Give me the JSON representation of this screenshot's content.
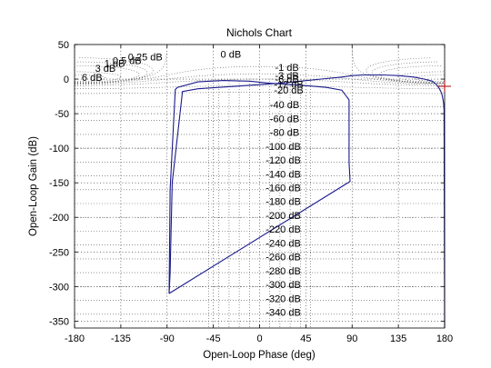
{
  "chart_data": {
    "type": "line",
    "title": "Nichols Chart",
    "xlabel": "Open-Loop Phase (deg)",
    "ylabel": "Open-Loop Gain (dB)",
    "xlim": [
      -180,
      180
    ],
    "ylim": [
      -360,
      50
    ],
    "xticks": [
      -180,
      -135,
      -90,
      -45,
      0,
      45,
      90,
      135,
      180
    ],
    "yticks": [
      50,
      0,
      -50,
      -100,
      -150,
      -200,
      -250,
      -300,
      -350
    ],
    "xtick_labels": [
      "-180",
      "-135",
      "-90",
      "-45",
      "0",
      "45",
      "90",
      "135",
      "180"
    ],
    "ytick_labels": [
      "50",
      "0",
      "-50",
      "-100",
      "-150",
      "-200",
      "-250",
      "-300",
      "-350"
    ],
    "grid": true,
    "contour_labels": [
      {
        "text": "0 dB",
        "x": -38,
        "y": 36
      },
      {
        "text": "0.25 dB",
        "x": -128,
        "y": 32
      },
      {
        "text": "0.5 dB",
        "x": -143,
        "y": 27
      },
      {
        "text": "1 dB",
        "x": -151,
        "y": 23
      },
      {
        "text": "3 dB",
        "x": -160,
        "y": 16
      },
      {
        "text": "6 dB",
        "x": -173,
        "y": 3
      },
      {
        "text": "-1 dB",
        "x": 15,
        "y": 17
      },
      {
        "text": "-3 dB",
        "x": 15,
        "y": 5
      },
      {
        "text": "-6 dB",
        "x": 15,
        "y": 0
      },
      {
        "text": "-12 dB",
        "x": 14,
        "y": -7
      },
      {
        "text": "-20 dB",
        "x": 14,
        "y": -16
      },
      {
        "text": "-40 dB",
        "x": 10,
        "y": -37
      },
      {
        "text": "-60 dB",
        "x": 10,
        "y": -57
      },
      {
        "text": "-80 dB",
        "x": 10,
        "y": -77
      },
      {
        "text": "-100 dB",
        "x": 6,
        "y": -97
      },
      {
        "text": "-120 dB",
        "x": 6,
        "y": -117
      },
      {
        "text": "-140 dB",
        "x": 6,
        "y": -137
      },
      {
        "text": "-160 dB",
        "x": 6,
        "y": -157
      },
      {
        "text": "-180 dB",
        "x": 6,
        "y": -177
      },
      {
        "text": "-200 dB",
        "x": 6,
        "y": -197
      },
      {
        "text": "-220 dB",
        "x": 6,
        "y": -217
      },
      {
        "text": "-240 dB",
        "x": 6,
        "y": -237
      },
      {
        "text": "-260 dB",
        "x": 6,
        "y": -257
      },
      {
        "text": "-280 dB",
        "x": 6,
        "y": -277
      },
      {
        "text": "-300 dB",
        "x": 6,
        "y": -297
      },
      {
        "text": "-320 dB",
        "x": 6,
        "y": -317
      },
      {
        "text": "-340 dB",
        "x": 6,
        "y": -337
      }
    ],
    "series": [
      {
        "color": "#1a1a8c",
        "x": [
          -88,
          -87,
          -85,
          -75,
          -60,
          -40,
          -20,
          0,
          20,
          40,
          60,
          80,
          90,
          100,
          110,
          120,
          135,
          150,
          160,
          168,
          172,
          175,
          177,
          178,
          179,
          179.5,
          180
        ],
        "y": [
          -310,
          -280,
          -150,
          -18,
          -14,
          -12,
          -10,
          -8,
          -6,
          -3,
          0,
          3,
          5,
          6,
          6,
          6,
          5,
          3,
          0,
          -3,
          -8,
          -14,
          -20,
          -26,
          -35,
          -45,
          -360
        ]
      },
      {
        "color": "#1a1a8c",
        "x": [
          -88,
          88,
          87,
          87,
          80,
          65,
          50,
          30,
          10,
          -10,
          -35,
          -60,
          -80,
          -82,
          -87,
          -88
        ],
        "y": [
          -310,
          -148,
          -120,
          -30,
          -16,
          -12,
          -10,
          -8,
          -6,
          -3,
          -2,
          -4,
          -12,
          -15,
          -160,
          -310
        ]
      }
    ]
  }
}
